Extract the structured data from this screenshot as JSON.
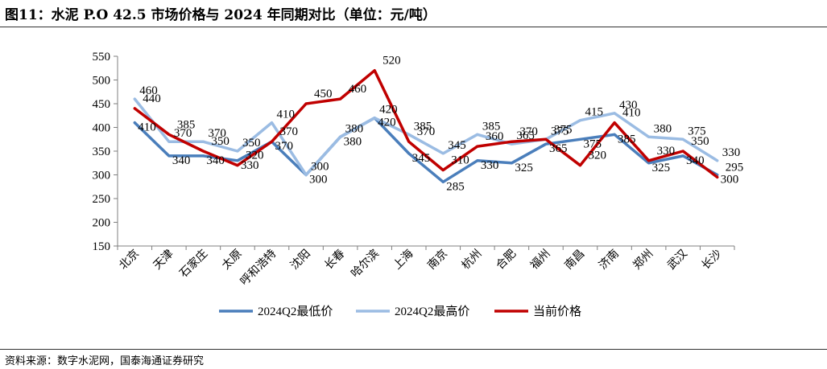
{
  "title": "图11：水泥 P.O 42.5 市场价格与 2024 年同期对比（单位：元/吨）",
  "source": "资料来源：数字水泥网，国泰海通证券研究",
  "chart_data": {
    "type": "line",
    "categories": [
      "北京",
      "天津",
      "石家庄",
      "太原",
      "呼和浩特",
      "沈阳",
      "长春",
      "哈尔滨",
      "上海",
      "南京",
      "杭州",
      "合肥",
      "福州",
      "南昌",
      "济南",
      "郑州",
      "武汉",
      "长沙"
    ],
    "ylim": [
      150,
      550
    ],
    "yticks": [
      150,
      200,
      250,
      300,
      350,
      400,
      450,
      500,
      550
    ],
    "grid": false,
    "legend_position": "bottom",
    "series": [
      {
        "name": "2024Q2最低价",
        "color": "#4a7ebb",
        "values": [
          410,
          340,
          340,
          330,
          370,
          300,
          380,
          420,
          345,
          285,
          330,
          325,
          365,
          375,
          385,
          325,
          340,
          300
        ]
      },
      {
        "name": "2024Q2最高价",
        "color": "#9bbce3",
        "values": [
          460,
          370,
          370,
          350,
          410,
          300,
          380,
          420,
          385,
          345,
          385,
          365,
          375,
          415,
          430,
          380,
          375,
          330
        ]
      },
      {
        "name": "当前价格",
        "color": "#c00000",
        "values": [
          440,
          385,
          350,
          320,
          370,
          450,
          460,
          520,
          370,
          310,
          360,
          370,
          375,
          320,
          410,
          330,
          350,
          295
        ]
      }
    ]
  }
}
